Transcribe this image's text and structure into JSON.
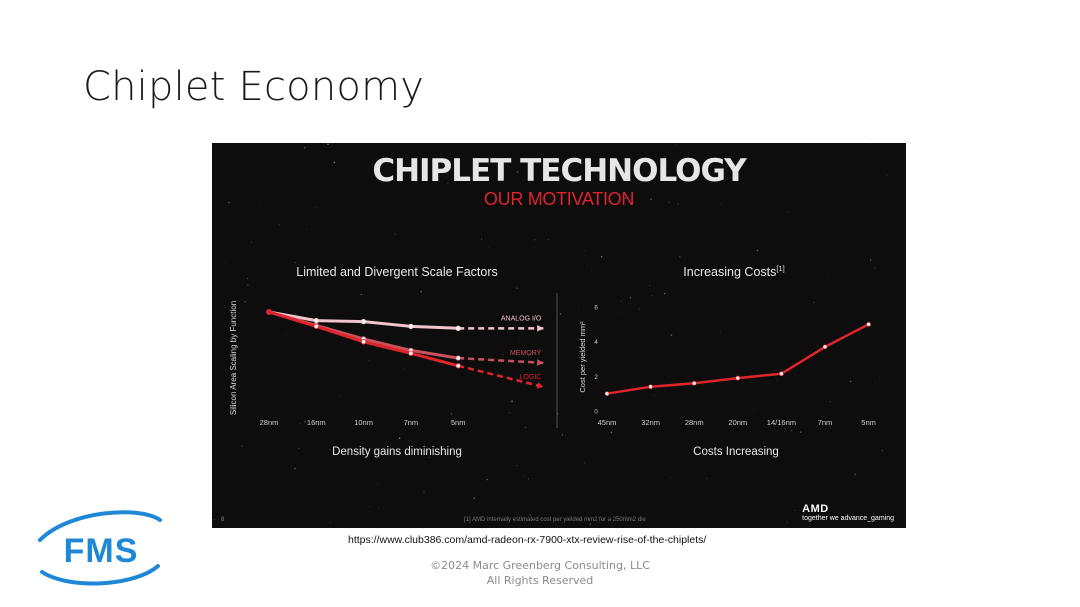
{
  "slide": {
    "title": "Chiplet Economy",
    "source_url": "https://www.club386.com/amd-radeon-rx-7900-xtx-review-rise-of-the-chiplets/",
    "copyright_line1": "©2024 Marc Greenberg Consulting, LLC",
    "copyright_line2": "All Rights Reserved",
    "logo_text": "FMS",
    "logo_color": "#1e88d6"
  },
  "panel": {
    "title": "CHIPLET TECHNOLOGY",
    "subtitle": "OUR MOTIVATION",
    "footnote": "[1] AMD internally estimated cost per yielded mm2 for a 250mm2 die",
    "page_number": "8",
    "brand": "AMD",
    "brand_tagline": "together we advance_gaming",
    "accent_color": "#e0242c"
  },
  "chart_data": [
    {
      "type": "line",
      "title": "Limited and Divergent Scale Factors",
      "xlabel": "Density gains diminishing",
      "ylabel": "Silicon Area Scaling by Function",
      "categories": [
        "28nm",
        "16nm",
        "10nm",
        "7nm",
        "5nm"
      ],
      "yticks_visible": false,
      "ylim": [
        0,
        1.0
      ],
      "series": [
        {
          "name": "ANALOG I/O",
          "color": "#f2c4cc",
          "values": [
            1.0,
            0.91,
            0.9,
            0.85,
            0.83
          ],
          "projection": 0.83
        },
        {
          "name": "MEMORY",
          "color": "#c9505c",
          "values": [
            1.0,
            0.86,
            0.72,
            0.6,
            0.52
          ],
          "projection": 0.47
        },
        {
          "name": "LOGIC",
          "color": "#e0242c",
          "values": [
            1.0,
            0.85,
            0.69,
            0.57,
            0.44
          ],
          "projection": 0.22
        }
      ]
    },
    {
      "type": "line",
      "title": "Increasing Costs",
      "title_superscript": "[1]",
      "xlabel": "Costs Increasing",
      "ylabel": "Cost per yielded mm²",
      "categories": [
        "45nm",
        "32nm",
        "28nm",
        "20nm",
        "14/16nm",
        "7nm",
        "5nm"
      ],
      "yticks": [
        0,
        2,
        4,
        6
      ],
      "ylim": [
        0,
        6
      ],
      "series": [
        {
          "color": "#e0242c",
          "values": [
            1.0,
            1.4,
            1.6,
            1.9,
            2.15,
            3.7,
            5.0
          ]
        }
      ]
    }
  ]
}
